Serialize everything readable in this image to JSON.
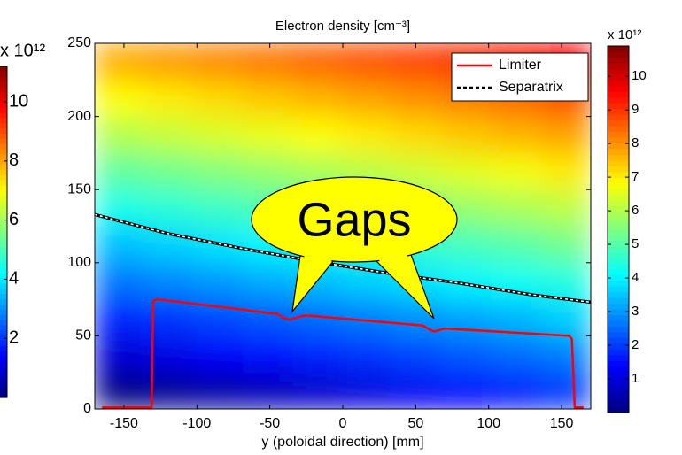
{
  "chart_data": {
    "type": "heatmap",
    "title": "Electron density [cm⁻³]",
    "xlabel": "y (poloidal direction) [mm]",
    "colormap": "jet",
    "clim": [
      0,
      10.9
    ],
    "x": [
      -153,
      -119,
      -85,
      -51,
      -17,
      17,
      51,
      85,
      119,
      153
    ],
    "y": [
      12.5,
      37.5,
      62.5,
      87.5,
      112.5,
      137.5,
      162.5,
      187.5,
      212.5,
      237.5
    ],
    "z": [
      [
        0.0,
        0.2,
        0.4,
        0.6,
        0.8,
        1.0,
        1.2,
        1.4,
        1.6,
        1.9
      ],
      [
        0.9,
        1.1,
        1.3,
        1.5,
        1.7,
        1.9,
        2.1,
        2.3,
        2.5,
        2.7
      ],
      [
        1.7,
        1.9,
        2.1,
        2.3,
        2.5,
        2.7,
        2.9,
        3.1,
        3.3,
        3.6
      ],
      [
        2.6,
        2.8,
        3.0,
        3.2,
        3.4,
        3.6,
        3.8,
        4.0,
        4.2,
        4.4
      ],
      [
        3.4,
        3.6,
        3.8,
        4.0,
        4.2,
        4.4,
        4.6,
        4.8,
        5.0,
        5.3
      ],
      [
        4.3,
        4.5,
        4.7,
        4.9,
        5.1,
        5.3,
        5.5,
        5.7,
        5.9,
        6.1
      ],
      [
        5.1,
        5.3,
        5.5,
        5.7,
        5.9,
        6.1,
        6.3,
        6.5,
        6.7,
        7.0
      ],
      [
        6.0,
        6.2,
        6.4,
        6.6,
        6.8,
        7.0,
        7.2,
        7.4,
        7.6,
        7.8
      ],
      [
        6.8,
        7.0,
        7.2,
        7.4,
        7.6,
        7.8,
        8.0,
        8.2,
        8.4,
        8.7
      ],
      [
        7.7,
        7.9,
        8.1,
        8.3,
        8.5,
        8.7,
        8.9,
        9.1,
        9.3,
        9.5
      ]
    ],
    "xlim": [
      -170,
      170
    ],
    "ylim": [
      0,
      250
    ],
    "xticks": [
      -150,
      -100,
      -50,
      0,
      50,
      100,
      150
    ],
    "yticks": [
      0,
      50,
      100,
      150,
      200,
      250
    ],
    "series": [
      {
        "name": "Limiter",
        "color": "#ff0000",
        "linestyle": "solid",
        "x": [
          -165,
          -131,
          -130,
          -127,
          -45,
          -40,
          -36,
          -30,
          -25,
          55,
          60,
          63,
          70,
          155,
          157,
          159,
          165
        ],
        "values": [
          1,
          1,
          74,
          75,
          65,
          62,
          61,
          63,
          64,
          57,
          54,
          53,
          55,
          50,
          48,
          1,
          1
        ]
      },
      {
        "name": "Separatrix",
        "color": "#000000",
        "linestyle": "dashed",
        "x": [
          -170,
          -120,
          -70,
          -20,
          30,
          80,
          130,
          170
        ],
        "values": [
          133,
          120,
          110,
          101,
          93,
          86,
          78,
          73
        ]
      }
    ],
    "legend": "upper right",
    "annotation": {
      "text": "Gaps"
    },
    "colorbar": {
      "label": "x 10¹²",
      "ylim": [
        0,
        10.9
      ],
      "ticks": [
        1,
        2,
        3,
        4,
        5,
        6,
        7,
        8,
        9,
        10
      ]
    },
    "colorbar_left": {
      "label": "x 10¹²",
      "ylim": [
        0,
        11.2
      ],
      "ticks": [
        2,
        4,
        6,
        8,
        10
      ]
    }
  }
}
